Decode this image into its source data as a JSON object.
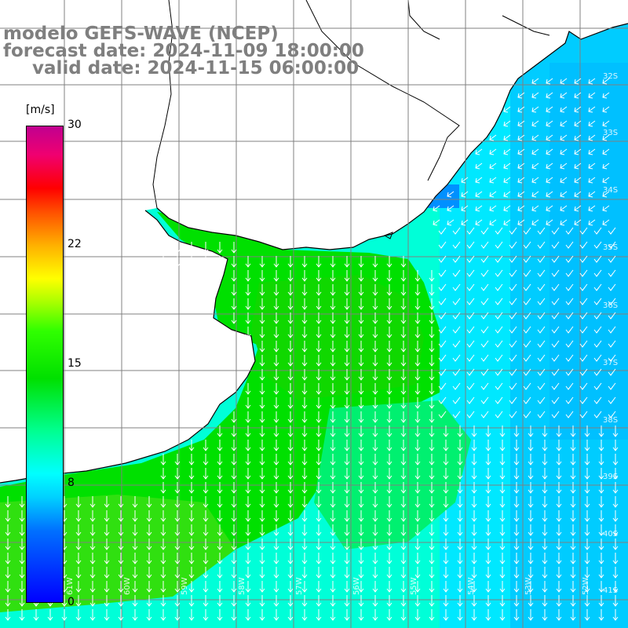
{
  "title": {
    "model": "modelo GEFS-WAVE (NCEP)",
    "forecast": "forecast date: 2024-11-09 18:00:00",
    "valid": "valid date: 2024-11-15 06:00:00"
  },
  "colorbar": {
    "unit": "[m/s]",
    "ticks": [
      "30",
      "22",
      "15",
      "8",
      "0"
    ]
  },
  "grid": {
    "lat_labels": [
      "32S",
      "33S",
      "34S",
      "35S",
      "36S",
      "37S",
      "38S",
      "39S",
      "40S",
      "41S"
    ],
    "lon_labels": [
      "61W",
      "60W",
      "59W",
      "58W",
      "57W",
      "56W",
      "55W",
      "54W",
      "53W",
      "52W"
    ]
  },
  "colors": {
    "land": "#ffffff",
    "coast": "#000000",
    "grid": "#808080",
    "arrow": "#ffffff",
    "title_text": "#7f7f7f"
  },
  "field": {
    "variable": "wind speed",
    "unit": "m/s",
    "vmin": 0,
    "vmax": 30,
    "wind_from": "north-northeast"
  }
}
